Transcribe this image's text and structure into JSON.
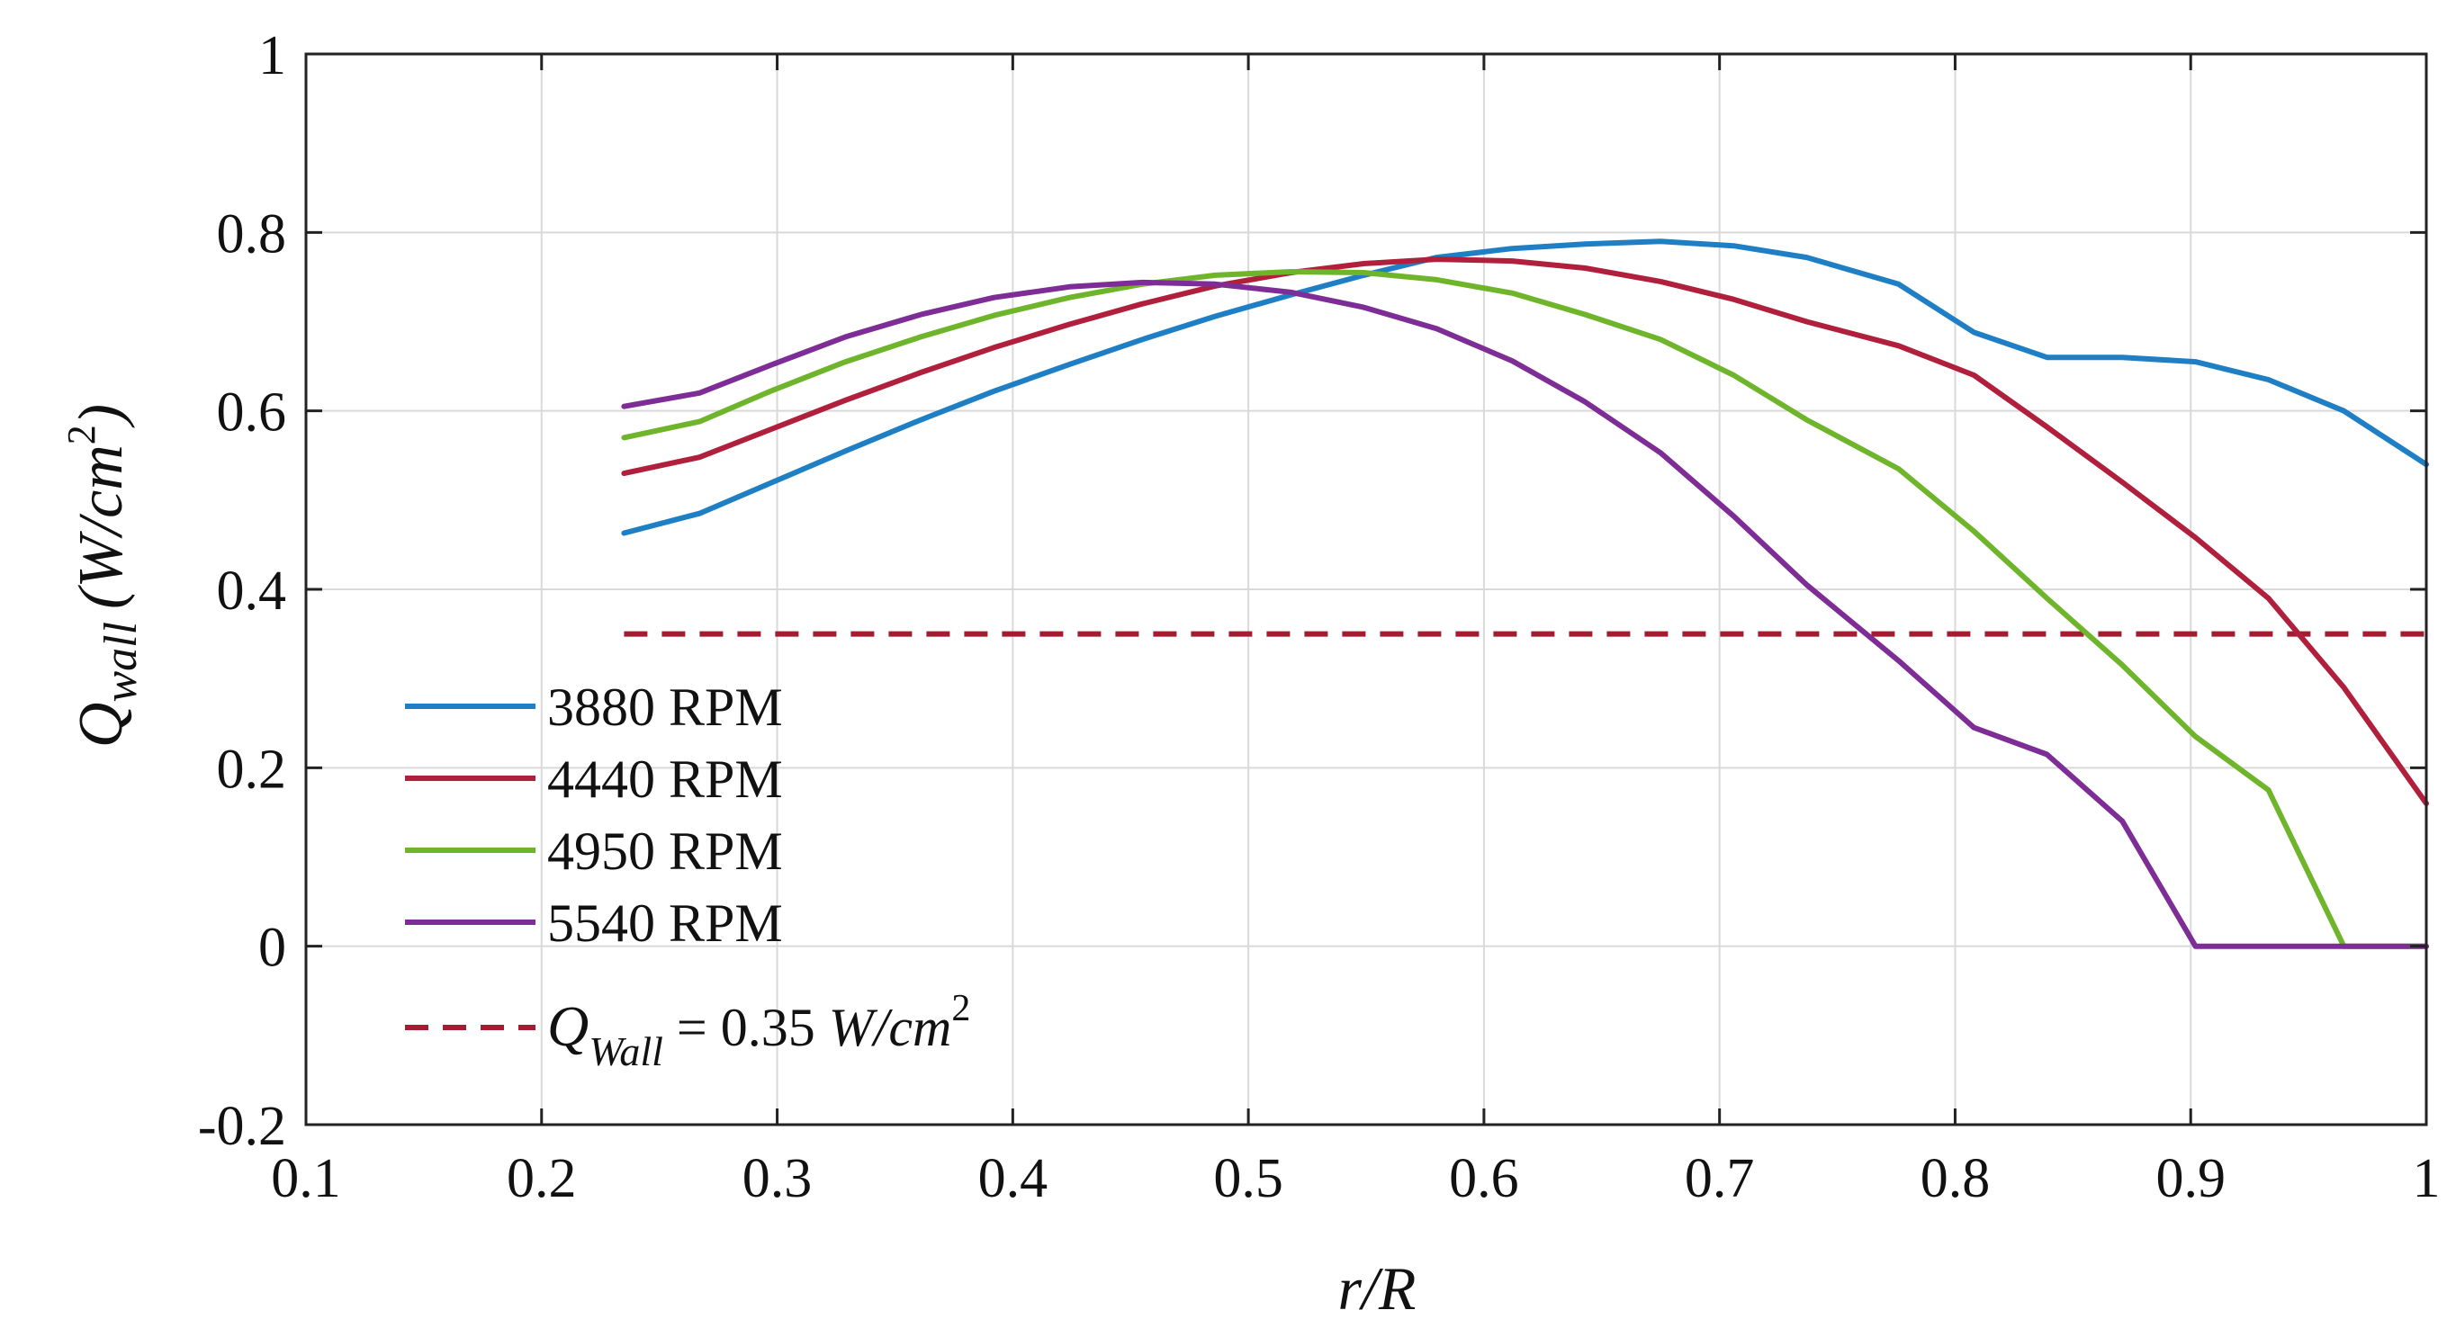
{
  "chart_data": {
    "type": "line",
    "title": "",
    "xlabel": "r/R",
    "ylabel": {
      "symbol": "Q",
      "subscript": "wall",
      "unit_open": "(W/cm",
      "unit_sup": "2",
      "unit_close": ")"
    },
    "xlim": [
      0.1,
      1.0
    ],
    "ylim": [
      -0.2,
      1.0
    ],
    "xticks": [
      "0.1",
      "0.2",
      "0.3",
      "0.4",
      "0.5",
      "0.6",
      "0.7",
      "0.8",
      "0.9",
      "1"
    ],
    "yticks": [
      "-0.2",
      "0",
      "0.2",
      "0.4",
      "0.6",
      "0.8",
      "1"
    ],
    "grid": true,
    "legend_position": "bottom-left",
    "x": [
      0.235,
      0.267,
      0.298,
      0.329,
      0.361,
      0.392,
      0.424,
      0.455,
      0.486,
      0.518,
      0.549,
      0.58,
      0.612,
      0.643,
      0.675,
      0.706,
      0.737,
      0.776,
      0.808,
      0.839,
      0.871,
      0.902,
      0.933,
      0.965,
      1.0
    ],
    "series": [
      {
        "name": "3880 RPM",
        "color": "#1f7fc4",
        "values": [
          0.463,
          0.485,
          0.52,
          0.555,
          0.59,
          0.622,
          0.652,
          0.68,
          0.706,
          0.73,
          0.752,
          0.772,
          0.782,
          0.787,
          0.79,
          0.785,
          0.772,
          0.742,
          0.688,
          0.66,
          0.66,
          0.655,
          0.635,
          0.6,
          0.54
        ]
      },
      {
        "name": "4440 RPM",
        "color": "#b01f3c",
        "values": [
          0.53,
          0.548,
          0.58,
          0.612,
          0.643,
          0.671,
          0.697,
          0.72,
          0.74,
          0.755,
          0.765,
          0.77,
          0.768,
          0.76,
          0.745,
          0.725,
          0.7,
          0.673,
          0.64,
          0.582,
          0.52,
          0.458,
          0.39,
          0.29,
          0.16
        ]
      },
      {
        "name": "4950 RPM",
        "color": "#6fb52c",
        "values": [
          0.57,
          0.588,
          0.623,
          0.655,
          0.683,
          0.707,
          0.727,
          0.742,
          0.752,
          0.756,
          0.755,
          0.747,
          0.732,
          0.708,
          0.68,
          0.64,
          0.59,
          0.535,
          0.465,
          0.39,
          0.315,
          0.235,
          0.175,
          0.0,
          0.0
        ]
      },
      {
        "name": "5540 RPM",
        "color": "#7d2d95",
        "values": [
          0.605,
          0.62,
          0.652,
          0.683,
          0.708,
          0.727,
          0.739,
          0.744,
          0.742,
          0.733,
          0.716,
          0.692,
          0.656,
          0.61,
          0.553,
          0.482,
          0.405,
          0.32,
          0.245,
          0.215,
          0.14,
          0.0,
          0.0,
          0.0,
          0.0
        ]
      }
    ],
    "reference_line": {
      "y": 0.35,
      "color": "#a51c30",
      "style": "dashed",
      "label": {
        "symbol": "Q",
        "subscript": "Wall",
        "text": " = 0.35 ",
        "unit": "W/cm",
        "unit_sup": "2"
      }
    }
  }
}
